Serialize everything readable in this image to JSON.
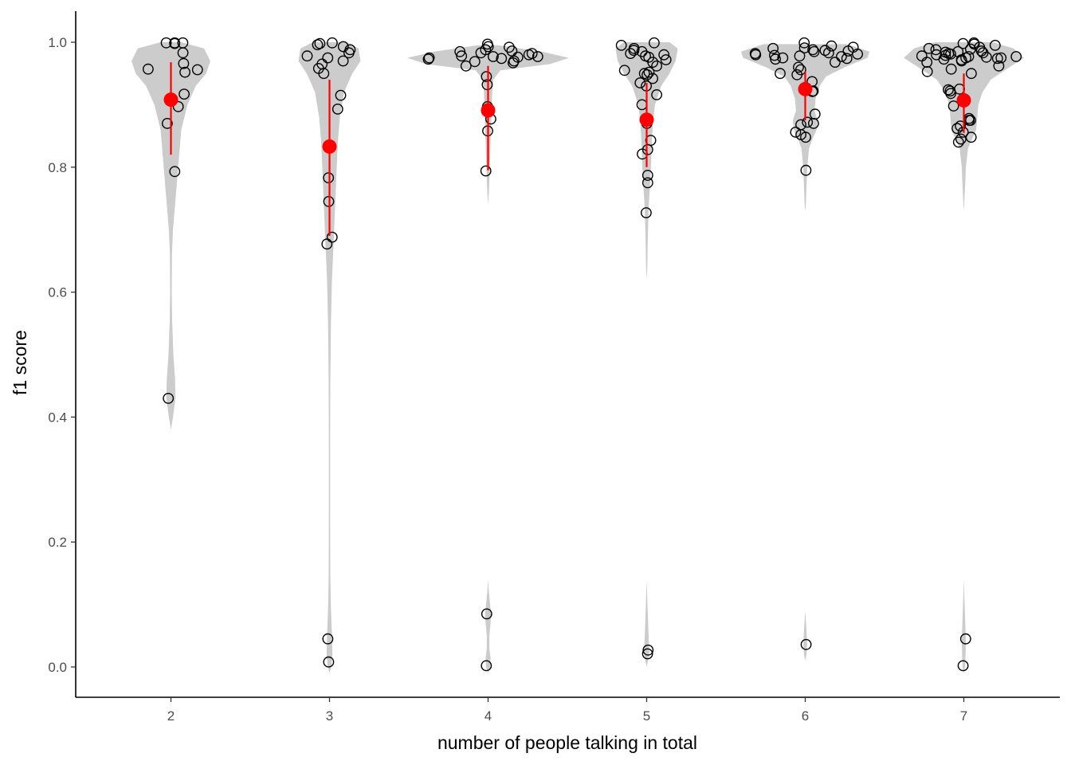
{
  "chart_data": {
    "type": "scatter",
    "subtype": "violin-jitter-with-mean-ci",
    "xlabel": "number of people talking in total",
    "ylabel": "f1 score",
    "ylim": [
      -0.05,
      1.05
    ],
    "yticks": [
      "0.0",
      "0.2",
      "0.4",
      "0.6",
      "0.8",
      "1.0"
    ],
    "ytick_values": [
      0.0,
      0.2,
      0.4,
      0.6,
      0.8,
      1.0
    ],
    "categories": [
      "2",
      "3",
      "4",
      "5",
      "6",
      "7"
    ],
    "grid": false,
    "legend": "none",
    "colors": {
      "violin": "#cccccc",
      "point_stroke": "#000000",
      "summary": "#ff0000"
    },
    "groups": [
      {
        "category": "2",
        "mean": 0.908,
        "ci": [
          0.82,
          0.968
        ],
        "points": [
          0.999,
          0.999,
          0.998,
          0.999,
          0.983,
          0.966,
          0.957,
          0.956,
          0.952,
          0.917,
          0.897,
          0.87,
          0.793,
          0.43
        ],
        "violin": [
          [
            1.0,
            0.05
          ],
          [
            0.99,
            0.16
          ],
          [
            0.97,
            0.19
          ],
          [
            0.95,
            0.17
          ],
          [
            0.93,
            0.12
          ],
          [
            0.9,
            0.08
          ],
          [
            0.86,
            0.05
          ],
          [
            0.82,
            0.04
          ],
          [
            0.78,
            0.03
          ],
          [
            0.74,
            0.02
          ],
          [
            0.7,
            0.01
          ],
          [
            0.66,
            0.005
          ],
          [
            0.6,
            0.004
          ],
          [
            0.55,
            0.006
          ],
          [
            0.5,
            0.012
          ],
          [
            0.46,
            0.02
          ],
          [
            0.43,
            0.022
          ],
          [
            0.4,
            0.01
          ],
          [
            0.38,
            0.0
          ]
        ]
      },
      {
        "category": "3",
        "mean": 0.833,
        "ci": [
          0.69,
          0.94
        ],
        "points": [
          0.999,
          0.998,
          0.996,
          0.993,
          0.988,
          0.983,
          0.978,
          0.975,
          0.97,
          0.965,
          0.958,
          0.95,
          0.915,
          0.893,
          0.783,
          0.745,
          0.688,
          0.677,
          0.045,
          0.008
        ],
        "violin": [
          [
            1.0,
            0.08
          ],
          [
            0.99,
            0.14
          ],
          [
            0.97,
            0.15
          ],
          [
            0.95,
            0.11
          ],
          [
            0.92,
            0.07
          ],
          [
            0.88,
            0.05
          ],
          [
            0.84,
            0.04
          ],
          [
            0.8,
            0.035
          ],
          [
            0.76,
            0.03
          ],
          [
            0.72,
            0.025
          ],
          [
            0.68,
            0.02
          ],
          [
            0.62,
            0.012
          ],
          [
            0.55,
            0.007
          ],
          [
            0.45,
            0.004
          ],
          [
            0.35,
            0.003
          ],
          [
            0.25,
            0.003
          ],
          [
            0.15,
            0.004
          ],
          [
            0.1,
            0.006
          ],
          [
            0.05,
            0.012
          ],
          [
            0.02,
            0.014
          ],
          [
            0.0,
            0.008
          ],
          [
            -0.01,
            0.0
          ]
        ]
      },
      {
        "category": "4",
        "mean": 0.891,
        "ci": [
          0.795,
          0.962
        ],
        "points": [
          0.997,
          0.993,
          0.992,
          0.988,
          0.986,
          0.985,
          0.983,
          0.982,
          0.98,
          0.978,
          0.977,
          0.977,
          0.976,
          0.975,
          0.974,
          0.973,
          0.97,
          0.969,
          0.967,
          0.962,
          0.945,
          0.932,
          0.897,
          0.877,
          0.858,
          0.794,
          0.085,
          0.002
        ],
        "violin": [
          [
            0.995,
            0.05
          ],
          [
            0.985,
            0.26
          ],
          [
            0.975,
            0.39
          ],
          [
            0.965,
            0.3
          ],
          [
            0.955,
            0.06
          ],
          [
            0.94,
            0.025
          ],
          [
            0.92,
            0.02
          ],
          [
            0.9,
            0.018
          ],
          [
            0.88,
            0.016
          ],
          [
            0.86,
            0.014
          ],
          [
            0.84,
            0.012
          ],
          [
            0.82,
            0.01
          ],
          [
            0.8,
            0.008
          ],
          [
            0.78,
            0.006
          ],
          [
            0.76,
            0.004
          ],
          [
            0.74,
            0.0
          ],
          [
            0.14,
            0.0
          ],
          [
            0.12,
            0.004
          ],
          [
            0.1,
            0.01
          ],
          [
            0.085,
            0.014
          ],
          [
            0.07,
            0.012
          ],
          [
            0.05,
            0.006
          ],
          [
            0.03,
            0.006
          ],
          [
            0.015,
            0.012
          ],
          [
            0.0,
            0.01
          ],
          [
            -0.01,
            0.0
          ]
        ]
      },
      {
        "category": "5",
        "mean": 0.876,
        "ci": [
          0.8,
          0.935
        ],
        "points": [
          0.999,
          0.995,
          0.99,
          0.987,
          0.985,
          0.982,
          0.98,
          0.978,
          0.976,
          0.972,
          0.968,
          0.962,
          0.955,
          0.952,
          0.95,
          0.948,
          0.942,
          0.935,
          0.93,
          0.916,
          0.9,
          0.87,
          0.843,
          0.828,
          0.821,
          0.787,
          0.775,
          0.727,
          0.027,
          0.021
        ],
        "violin": [
          [
            1.0,
            0.11
          ],
          [
            0.99,
            0.15
          ],
          [
            0.97,
            0.14
          ],
          [
            0.95,
            0.11
          ],
          [
            0.93,
            0.07
          ],
          [
            0.9,
            0.04
          ],
          [
            0.87,
            0.03
          ],
          [
            0.84,
            0.025
          ],
          [
            0.81,
            0.022
          ],
          [
            0.78,
            0.018
          ],
          [
            0.75,
            0.012
          ],
          [
            0.72,
            0.008
          ],
          [
            0.68,
            0.005
          ],
          [
            0.64,
            0.003
          ],
          [
            0.62,
            0.0
          ],
          [
            0.14,
            0.0
          ],
          [
            0.1,
            0.004
          ],
          [
            0.06,
            0.008
          ],
          [
            0.03,
            0.012
          ],
          [
            0.02,
            0.012
          ],
          [
            0.01,
            0.006
          ],
          [
            0.0,
            0.0
          ]
        ]
      },
      {
        "category": "6",
        "mean": 0.925,
        "ci": [
          0.875,
          0.953
        ],
        "points": [
          0.999,
          0.994,
          0.992,
          0.991,
          0.99,
          0.988,
          0.987,
          0.986,
          0.985,
          0.983,
          0.982,
          0.981,
          0.98,
          0.979,
          0.978,
          0.977,
          0.975,
          0.974,
          0.973,
          0.968,
          0.96,
          0.956,
          0.95,
          0.948,
          0.937,
          0.922,
          0.921,
          0.885,
          0.872,
          0.87,
          0.868,
          0.856,
          0.852,
          0.848,
          0.795,
          0.036
        ],
        "violin": [
          [
            0.997,
            0.2
          ],
          [
            0.985,
            0.31
          ],
          [
            0.975,
            0.3
          ],
          [
            0.96,
            0.19
          ],
          [
            0.945,
            0.1
          ],
          [
            0.93,
            0.07
          ],
          [
            0.91,
            0.05
          ],
          [
            0.89,
            0.045
          ],
          [
            0.875,
            0.06
          ],
          [
            0.86,
            0.055
          ],
          [
            0.845,
            0.035
          ],
          [
            0.83,
            0.018
          ],
          [
            0.8,
            0.01
          ],
          [
            0.77,
            0.006
          ],
          [
            0.74,
            0.003
          ],
          [
            0.73,
            0.0
          ],
          [
            0.09,
            0.0
          ],
          [
            0.07,
            0.004
          ],
          [
            0.045,
            0.008
          ],
          [
            0.035,
            0.009
          ],
          [
            0.02,
            0.006
          ],
          [
            0.01,
            0.0
          ]
        ]
      },
      {
        "category": "7",
        "mean": 0.907,
        "ci": [
          0.855,
          0.95
        ],
        "points": [
          0.999,
          0.998,
          0.997,
          0.995,
          0.992,
          0.99,
          0.989,
          0.988,
          0.986,
          0.985,
          0.984,
          0.983,
          0.982,
          0.981,
          0.98,
          0.979,
          0.978,
          0.977,
          0.977,
          0.976,
          0.975,
          0.975,
          0.974,
          0.973,
          0.972,
          0.97,
          0.968,
          0.962,
          0.957,
          0.953,
          0.95,
          0.925,
          0.924,
          0.922,
          0.918,
          0.898,
          0.875,
          0.875,
          0.878,
          0.866,
          0.862,
          0.856,
          0.848,
          0.845,
          0.84,
          0.045,
          0.002
        ],
        "violin": [
          [
            1.0,
            0.14
          ],
          [
            0.99,
            0.24
          ],
          [
            0.975,
            0.29
          ],
          [
            0.96,
            0.22
          ],
          [
            0.94,
            0.13
          ],
          [
            0.92,
            0.09
          ],
          [
            0.9,
            0.07
          ],
          [
            0.88,
            0.065
          ],
          [
            0.86,
            0.06
          ],
          [
            0.845,
            0.04
          ],
          [
            0.83,
            0.02
          ],
          [
            0.8,
            0.01
          ],
          [
            0.76,
            0.005
          ],
          [
            0.73,
            0.0
          ],
          [
            0.14,
            0.0
          ],
          [
            0.1,
            0.004
          ],
          [
            0.06,
            0.008
          ],
          [
            0.04,
            0.01
          ],
          [
            0.02,
            0.008
          ],
          [
            0.0,
            0.006
          ],
          [
            -0.01,
            0.0
          ]
        ]
      }
    ]
  }
}
